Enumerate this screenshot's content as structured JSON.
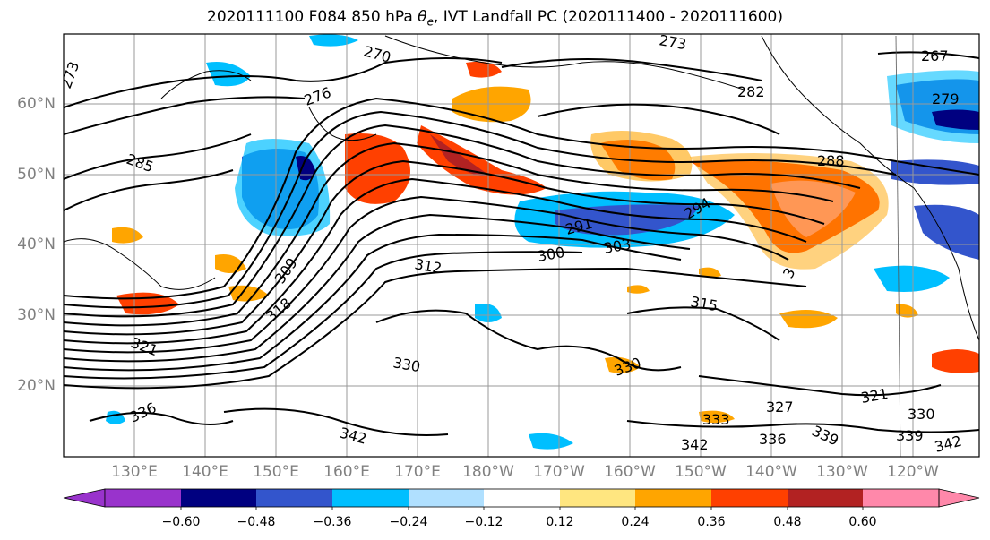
{
  "title": "2020111100 F084 850 hPa θe, IVT Landfall PC (2020111400 - 2020111600)",
  "title_parts": {
    "prefix": "2020111100 F084 850 hPa ",
    "theta": "θ",
    "sub": "e",
    "suffix": ", IVT Landfall PC (2020111400 - 2020111600)"
  },
  "lat_labels": [
    "60°N",
    "50°N",
    "40°N",
    "30°N",
    "20°N"
  ],
  "lon_labels": [
    "130°E",
    "140°E",
    "150°E",
    "160°E",
    "170°E",
    "180°W",
    "170°W",
    "160°W",
    "150°W",
    "140°W",
    "130°W",
    "120°W"
  ],
  "contour_labels": [
    "273",
    "270",
    "276",
    "273",
    "267",
    "285",
    "282",
    "279",
    "288",
    "291",
    "294",
    "300",
    "303",
    "309",
    "312",
    "315",
    "318",
    "321",
    "327",
    "330",
    "330",
    "333",
    "336",
    "336",
    "339",
    "339",
    "342",
    "342",
    "342",
    "330",
    "321",
    "3"
  ],
  "colorbar": {
    "ticks": [
      "−0.60",
      "−0.48",
      "−0.36",
      "−0.24",
      "−0.12",
      "0.12",
      "0.24",
      "0.36",
      "0.48",
      "0.60"
    ],
    "colors": [
      "#9933cc",
      "#000080",
      "#3355cc",
      "#00bfff",
      "#b0e0ff",
      "#ffffff",
      "#ffe680",
      "#ffa500",
      "#ff4000",
      "#b22222",
      "#ff88aa"
    ]
  }
}
